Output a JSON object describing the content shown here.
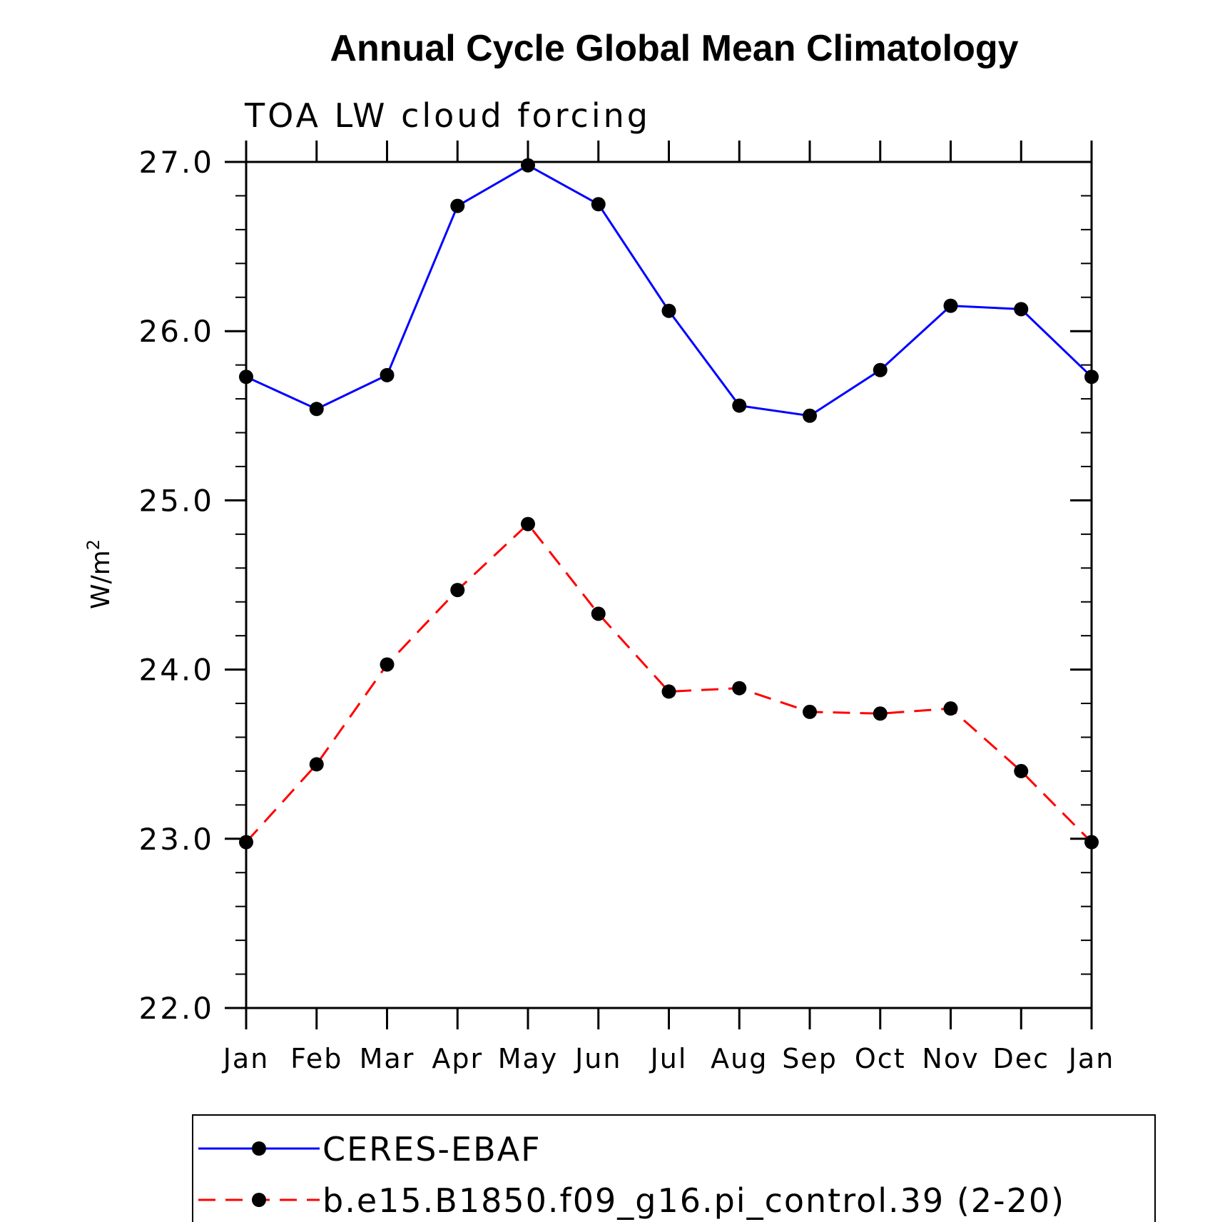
{
  "chart_data": {
    "type": "line",
    "title": "Annual Cycle Global Mean Climatology",
    "subtitle": "TOA LW cloud forcing",
    "ylabel_base": "W/m",
    "ylabel_sup": "2",
    "ylim": [
      22.0,
      27.0
    ],
    "yticks": [
      22.0,
      23.0,
      24.0,
      25.0,
      26.0,
      27.0
    ],
    "ytick_labels": [
      "22.0",
      "23.0",
      "24.0",
      "25.0",
      "26.0",
      "27.0"
    ],
    "yminor_step": 0.2,
    "categories": [
      "Jan",
      "Feb",
      "Mar",
      "Apr",
      "May",
      "Jun",
      "Jul",
      "Aug",
      "Sep",
      "Oct",
      "Nov",
      "Dec",
      "Jan"
    ],
    "legend_position": "bottom",
    "grid": false,
    "series": [
      {
        "name": "CERES-EBAF",
        "color": "#0000ff",
        "dash": "solid",
        "values": [
          25.73,
          25.54,
          25.74,
          26.74,
          26.98,
          26.75,
          26.12,
          25.56,
          25.5,
          25.77,
          26.15,
          26.13,
          25.73
        ]
      },
      {
        "name": "b.e15.B1850.f09_g16.pi_control.39 (2-20)",
        "color": "#ff0000",
        "dash": "dashed",
        "values": [
          22.98,
          23.44,
          24.03,
          24.47,
          24.86,
          24.33,
          23.87,
          23.89,
          23.75,
          23.74,
          23.77,
          23.4,
          22.98
        ]
      }
    ]
  }
}
